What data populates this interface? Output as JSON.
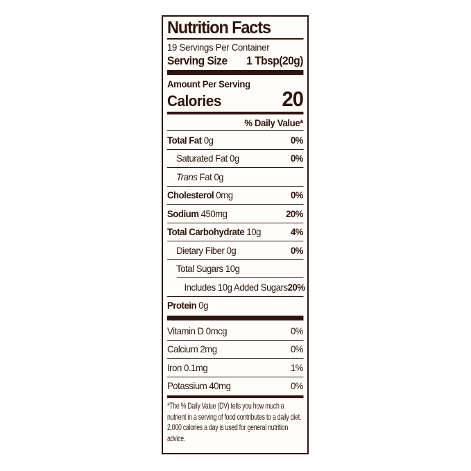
{
  "label": {
    "title": "Nutrition Facts",
    "servings_per_container": "19 Servings Per Container",
    "serving_size_label": "Serving Size",
    "serving_size_value": "1 Tbsp(20g)",
    "amount_per_serving": "Amount Per Serving",
    "calories_label": "Calories",
    "calories_value": "20",
    "daily_value_header": "% Daily Value*",
    "nutrients": [
      {
        "name": "Total Fat",
        "name_style": "bold",
        "amount": "0g",
        "percent": "0%",
        "percent_bold": true,
        "indent": 0
      },
      {
        "name": "Saturated Fat",
        "name_style": "regular",
        "amount": "0g",
        "percent": "0%",
        "percent_bold": true,
        "indent": 1
      },
      {
        "name": "Trans",
        "name_style": "italic",
        "amount": "Fat 0g",
        "percent": "",
        "percent_bold": false,
        "indent": 1
      },
      {
        "name": "Cholesterol",
        "name_style": "bold",
        "amount": "0mg",
        "percent": "0%",
        "percent_bold": true,
        "indent": 0
      },
      {
        "name": "Sodium",
        "name_style": "bold",
        "amount": "450mg",
        "percent": "20%",
        "percent_bold": true,
        "indent": 0
      },
      {
        "name": "Total Carbohydrate",
        "name_style": "bold",
        "amount": "10g",
        "percent": "4%",
        "percent_bold": true,
        "indent": 0
      },
      {
        "name": "Dietary Fiber",
        "name_style": "regular",
        "amount": "0g",
        "percent": "0%",
        "percent_bold": true,
        "indent": 1
      },
      {
        "name": "Total Sugars",
        "name_style": "regular",
        "amount": "10g",
        "percent": "",
        "percent_bold": false,
        "indent": 1
      },
      {
        "name": "Includes 10g Added Sugars",
        "name_style": "regular",
        "amount": "",
        "percent": "20%",
        "percent_bold": true,
        "indent": 2,
        "rule_indent": true
      },
      {
        "name": "Protein",
        "name_style": "bold",
        "amount": "0g",
        "percent": "",
        "percent_bold": false,
        "indent": 0
      }
    ],
    "vitamins": [
      {
        "name": "Vitamin D",
        "name_style": "regular",
        "amount": "0mcg",
        "percent": "0%",
        "percent_bold": false,
        "indent": 0
      },
      {
        "name": "Calcium",
        "name_style": "regular",
        "amount": "2mg",
        "percent": "0%",
        "percent_bold": false,
        "indent": 0
      },
      {
        "name": "Iron",
        "name_style": "regular",
        "amount": "0.1mg",
        "percent": "1%",
        "percent_bold": false,
        "indent": 0
      },
      {
        "name": "Potassium",
        "name_style": "regular",
        "amount": "40mg",
        "percent": "0%",
        "percent_bold": false,
        "indent": 0
      }
    ],
    "footnote": "*The % Daily Value (DV) tells you how much a nutrient in a serving of food contributes to a daily diet. 2,000 calories a day is used for general nutrition advice.",
    "colors": {
      "text": "#2f140d",
      "label_background": "#fffdf9",
      "page_background": "#ffffff",
      "rule": "#2f140d"
    }
  }
}
